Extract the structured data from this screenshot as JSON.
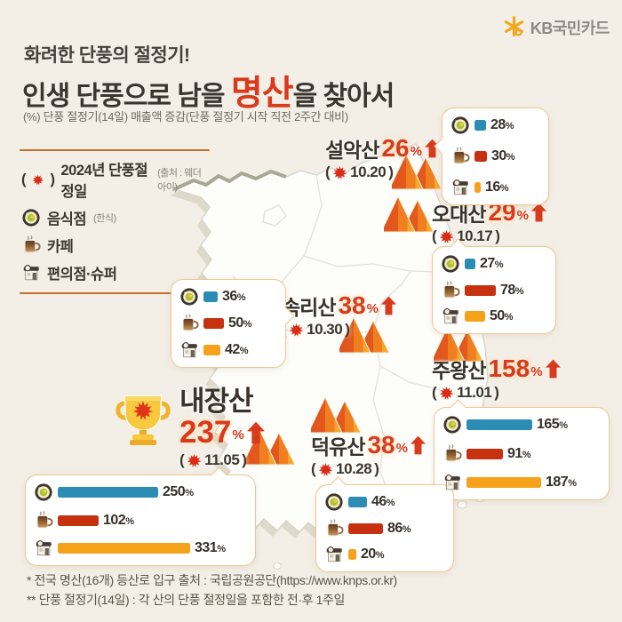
{
  "brand": {
    "logo_text": "KB국민카드"
  },
  "header": {
    "kicker": "화려한 단풍의 절정기!",
    "title_prefix": "인생 단풍으로 남을 ",
    "title_highlight": "명산",
    "title_suffix": "을 찾아서",
    "note": "(%) 단풍 절정기(14일) 매출액 증감(단풍 절정기 시작 직전 2주간 대비)"
  },
  "punct": {
    "open": "(",
    "close": ")"
  },
  "pct_symbol": "%",
  "legend": {
    "peak_label": "2024년 단풍절정일",
    "peak_source": "(출처 : 웨더아이)",
    "food_sub": "(한식)"
  },
  "colors": {
    "accent": "#d93a1c",
    "food_bar": "#2b8cb4",
    "cafe_bar": "#c63110",
    "store_bar": "#f5a119"
  },
  "chart_data": {
    "type": "bar",
    "title": "인생 단풍으로 남을 명산을 찾아서",
    "subtitle": "화려한 단풍의 절정기!",
    "note": "(%) 단풍 절정기(14일) 매출액 증감(단풍 절정기 시작 직전 2주간 대비)",
    "categories": [
      "음식점",
      "카페",
      "편의점·슈퍼"
    ],
    "series_colors": [
      "#2b8cb4",
      "#c63110",
      "#f5a119"
    ],
    "groups": [
      {
        "name": "설악산",
        "peak_date": "10.20",
        "total_pct": 26,
        "values": [
          28,
          30,
          16
        ]
      },
      {
        "name": "오대산",
        "peak_date": "10.17",
        "total_pct": 29,
        "values": [
          27,
          78,
          50
        ]
      },
      {
        "name": "속리산",
        "peak_date": "10.30",
        "total_pct": 38,
        "values": [
          36,
          50,
          42
        ]
      },
      {
        "name": "주왕산",
        "peak_date": "11.01",
        "total_pct": 158,
        "values": [
          165,
          91,
          187
        ]
      },
      {
        "name": "내장산",
        "peak_date": "11.05",
        "total_pct": 237,
        "values": [
          250,
          102,
          331
        ],
        "winner": true
      },
      {
        "name": "덕유산",
        "peak_date": "10.28",
        "total_pct": 38,
        "values": [
          46,
          86,
          20
        ]
      }
    ]
  },
  "footer": {
    "line1": "* 전국 명산(16개) 등산로 입구 출처 : 국립공원공단(https://www.knps.or.kr)",
    "line2": "** 단풍 절정기(14일) : 각 산의 단풍 절정일을 포함한 전·후 1주일"
  }
}
